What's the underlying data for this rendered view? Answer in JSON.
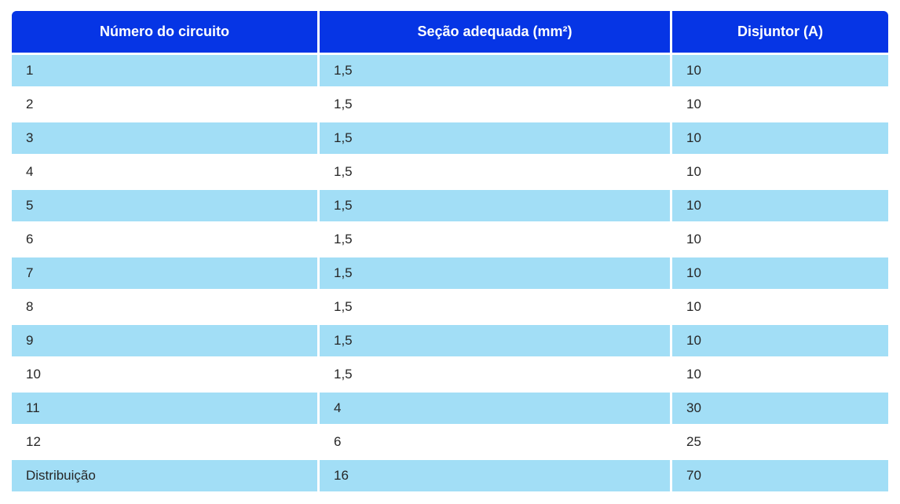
{
  "table": {
    "columns": [
      {
        "label": "Número do circuito"
      },
      {
        "label": "Seção adequada (mm²)"
      },
      {
        "label": "Disjuntor (A)"
      }
    ],
    "rows": [
      [
        "1",
        "1,5",
        "10"
      ],
      [
        "2",
        "1,5",
        "10"
      ],
      [
        "3",
        "1,5",
        "10"
      ],
      [
        "4",
        "1,5",
        "10"
      ],
      [
        "5",
        "1,5",
        "10"
      ],
      [
        "6",
        "1,5",
        "10"
      ],
      [
        "7",
        "1,5",
        "10"
      ],
      [
        "8",
        "1,5",
        "10"
      ],
      [
        "9",
        "1,5",
        "10"
      ],
      [
        "10",
        "1,5",
        "10"
      ],
      [
        "11",
        "4",
        "30"
      ],
      [
        "12",
        "6",
        "25"
      ],
      [
        "Distribuição",
        "16",
        "70"
      ]
    ]
  },
  "colors": {
    "header_bg": "#0635e5",
    "header_text": "#ffffff",
    "row_alt_bg": "#a2def6",
    "row_bg": "#ffffff",
    "cell_text": "#262626"
  },
  "chart_data": {
    "type": "table",
    "title": "",
    "columns": [
      "Número do circuito",
      "Seção adequada (mm²)",
      "Disjuntor (A)"
    ],
    "rows": [
      [
        "1",
        "1,5",
        "10"
      ],
      [
        "2",
        "1,5",
        "10"
      ],
      [
        "3",
        "1,5",
        "10"
      ],
      [
        "4",
        "1,5",
        "10"
      ],
      [
        "5",
        "1,5",
        "10"
      ],
      [
        "6",
        "1,5",
        "10"
      ],
      [
        "7",
        "1,5",
        "10"
      ],
      [
        "8",
        "1,5",
        "10"
      ],
      [
        "9",
        "1,5",
        "10"
      ],
      [
        "10",
        "1,5",
        "10"
      ],
      [
        "11",
        "4",
        "30"
      ],
      [
        "12",
        "6",
        "25"
      ],
      [
        "Distribuição",
        "16",
        "70"
      ]
    ]
  }
}
